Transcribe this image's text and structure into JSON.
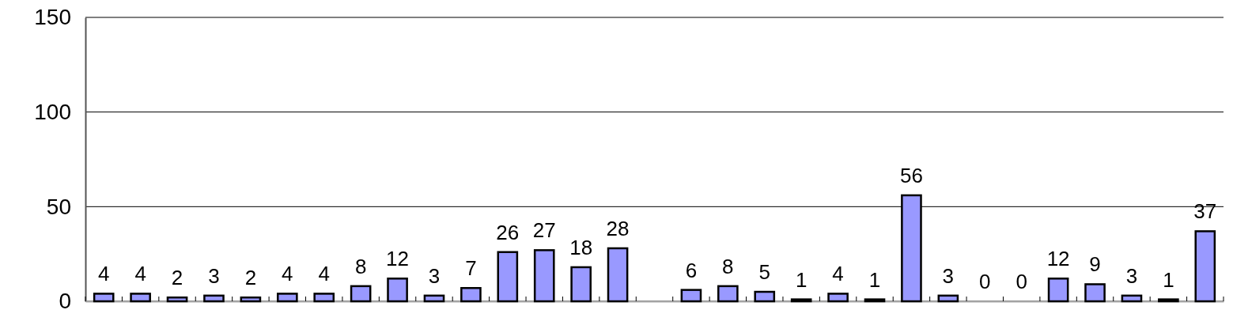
{
  "chart_data": {
    "type": "bar",
    "categories": [
      null,
      null,
      null,
      null,
      null,
      null,
      null,
      null,
      null,
      null,
      null,
      null,
      null,
      null,
      null,
      null,
      null,
      null,
      null,
      null,
      null,
      null,
      null,
      null,
      null,
      null,
      null,
      null,
      null,
      null,
      null
    ],
    "values": [
      4,
      4,
      2,
      3,
      2,
      4,
      4,
      8,
      12,
      3,
      7,
      26,
      27,
      18,
      28,
      null,
      6,
      8,
      5,
      1,
      4,
      1,
      56,
      3,
      0,
      0,
      12,
      9,
      3,
      1,
      37
    ],
    "color": "#9999ff",
    "ylim": [
      0,
      150
    ],
    "yticks": [
      0,
      50,
      100,
      150
    ],
    "grid": "y",
    "data_labels": true,
    "tick_labels": "y"
  }
}
